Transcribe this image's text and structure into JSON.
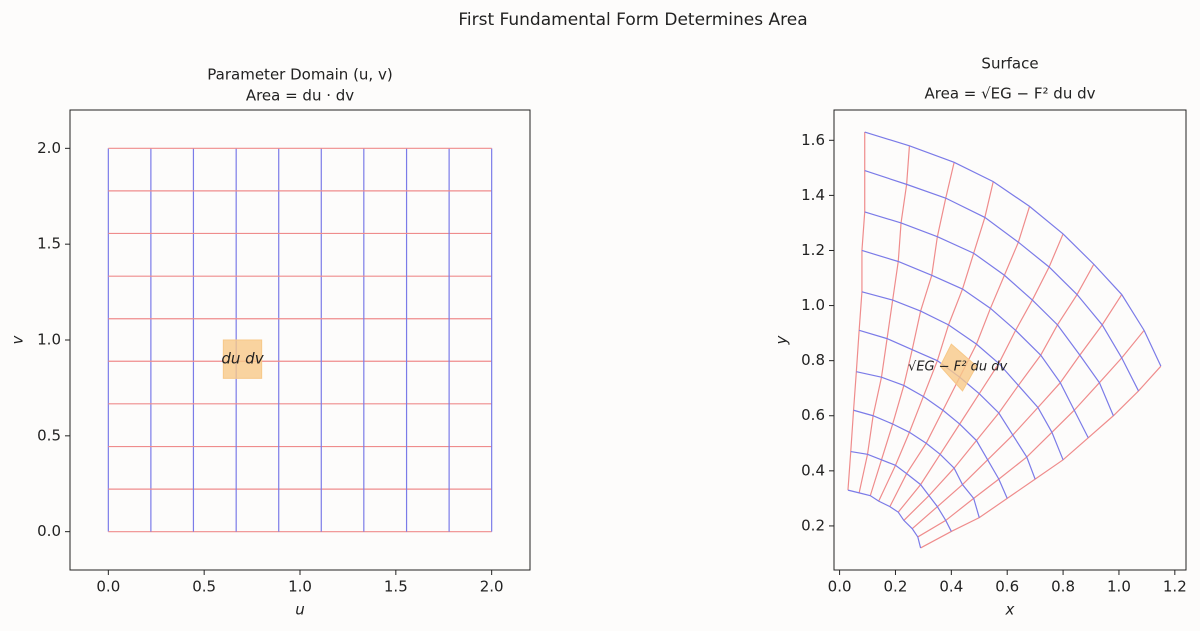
{
  "figure_title": "First Fundamental Form Determines Area",
  "chart_data": [
    {
      "type": "param-domain",
      "title": [
        "Parameter Domain (u, v)",
        "Area = du · dv"
      ],
      "xlabel": "u",
      "ylabel": "v",
      "xlim": [
        -0.2,
        2.2
      ],
      "ylim": [
        -0.2,
        2.2
      ],
      "xticks": [
        {
          "value": 0,
          "label": "0.0"
        },
        0.5,
        {
          "value": 1,
          "label": "1.0"
        },
        1.5,
        {
          "value": 2,
          "label": "2.0"
        }
      ],
      "yticks": [
        {
          "value": 0,
          "label": "0.0"
        },
        0.5,
        {
          "value": 1,
          "label": "1.0"
        },
        1.5,
        {
          "value": 2,
          "label": "2.0"
        }
      ],
      "grid_values": [
        0,
        0.222,
        0.444,
        0.667,
        0.889,
        1.111,
        1.333,
        1.556,
        1.778,
        2
      ],
      "u_color": "#7b7be8",
      "v_color": "#ef8c8c",
      "patch": {
        "u": [
          0.6,
          0.8
        ],
        "v": [
          0.8,
          1.0
        ],
        "color": "#f7c888",
        "label": "du dv"
      }
    },
    {
      "type": "surface-mesh",
      "title": [
        "Surface",
        "Area = √EG − F² du dv"
      ],
      "xlabel": "x",
      "ylabel": "y",
      "xlim": [
        -0.02,
        1.24
      ],
      "ylim": [
        0.04,
        1.71
      ],
      "xticks": [
        {
          "value": 0,
          "label": "0.0"
        },
        0.2,
        0.4,
        0.6,
        0.8,
        {
          "value": 1,
          "label": "1.0"
        },
        1.2
      ],
      "yticks": [
        0.2,
        0.4,
        0.6,
        0.8,
        {
          "value": 1,
          "label": "1.0"
        },
        1.2,
        1.4,
        1.6
      ],
      "u_color": "#7b7be8",
      "v_color": "#ef8c8c",
      "mesh": [
        [
          [
            0.03,
            0.33
          ],
          [
            0.04,
            0.47
          ],
          [
            0.05,
            0.62
          ],
          [
            0.06,
            0.76
          ],
          [
            0.07,
            0.91
          ],
          [
            0.08,
            1.05
          ],
          [
            0.08,
            1.2
          ],
          [
            0.09,
            1.34
          ],
          [
            0.09,
            1.49
          ],
          [
            0.09,
            1.63
          ]
        ],
        [
          [
            0.07,
            0.32
          ],
          [
            0.1,
            0.46
          ],
          [
            0.12,
            0.6
          ],
          [
            0.15,
            0.74
          ],
          [
            0.17,
            0.88
          ],
          [
            0.19,
            1.02
          ],
          [
            0.21,
            1.16
          ],
          [
            0.22,
            1.3
          ],
          [
            0.24,
            1.44
          ],
          [
            0.25,
            1.58
          ]
        ],
        [
          [
            0.11,
            0.31
          ],
          [
            0.15,
            0.44
          ],
          [
            0.19,
            0.57
          ],
          [
            0.23,
            0.71
          ],
          [
            0.26,
            0.84
          ],
          [
            0.29,
            0.98
          ],
          [
            0.33,
            1.11
          ],
          [
            0.35,
            1.25
          ],
          [
            0.38,
            1.39
          ],
          [
            0.41,
            1.52
          ]
        ],
        [
          [
            0.14,
            0.29
          ],
          [
            0.2,
            0.42
          ],
          [
            0.25,
            0.54
          ],
          [
            0.3,
            0.67
          ],
          [
            0.35,
            0.8
          ],
          [
            0.39,
            0.93
          ],
          [
            0.44,
            1.06
          ],
          [
            0.48,
            1.19
          ],
          [
            0.52,
            1.32
          ],
          [
            0.55,
            1.45
          ]
        ],
        [
          [
            0.18,
            0.27
          ],
          [
            0.24,
            0.39
          ],
          [
            0.31,
            0.5
          ],
          [
            0.37,
            0.62
          ],
          [
            0.43,
            0.74
          ],
          [
            0.49,
            0.86
          ],
          [
            0.54,
            0.99
          ],
          [
            0.59,
            1.11
          ],
          [
            0.64,
            1.23
          ],
          [
            0.68,
            1.36
          ]
        ],
        [
          [
            0.21,
            0.25
          ],
          [
            0.29,
            0.35
          ],
          [
            0.36,
            0.46
          ],
          [
            0.43,
            0.57
          ],
          [
            0.5,
            0.68
          ],
          [
            0.57,
            0.79
          ],
          [
            0.63,
            0.91
          ],
          [
            0.69,
            1.02
          ],
          [
            0.75,
            1.14
          ],
          [
            0.8,
            1.26
          ]
        ],
        [
          [
            0.23,
            0.22
          ],
          [
            0.32,
            0.31
          ],
          [
            0.41,
            0.41
          ],
          [
            0.49,
            0.51
          ],
          [
            0.57,
            0.61
          ],
          [
            0.64,
            0.71
          ],
          [
            0.72,
            0.82
          ],
          [
            0.78,
            0.93
          ],
          [
            0.85,
            1.04
          ],
          [
            0.91,
            1.15
          ]
        ],
        [
          [
            0.26,
            0.19
          ],
          [
            0.35,
            0.27
          ],
          [
            0.44,
            0.35
          ],
          [
            0.53,
            0.44
          ],
          [
            0.62,
            0.53
          ],
          [
            0.71,
            0.63
          ],
          [
            0.79,
            0.72
          ],
          [
            0.86,
            0.82
          ],
          [
            0.94,
            0.93
          ],
          [
            1.01,
            1.04
          ]
        ],
        [
          [
            0.28,
            0.16
          ],
          [
            0.38,
            0.22
          ],
          [
            0.48,
            0.3
          ],
          [
            0.57,
            0.37
          ],
          [
            0.67,
            0.45
          ],
          [
            0.76,
            0.54
          ],
          [
            0.84,
            0.62
          ],
          [
            0.93,
            0.72
          ],
          [
            1.01,
            0.81
          ],
          [
            1.09,
            0.91
          ]
        ],
        [
          [
            0.29,
            0.12
          ],
          [
            0.4,
            0.18
          ],
          [
            0.5,
            0.23
          ],
          [
            0.6,
            0.3
          ],
          [
            0.7,
            0.37
          ],
          [
            0.8,
            0.44
          ],
          [
            0.89,
            0.52
          ],
          [
            0.98,
            0.6
          ],
          [
            1.07,
            0.69
          ],
          [
            1.15,
            0.78
          ]
        ]
      ],
      "patch": {
        "corners": [
          [
            0.36,
            0.78
          ],
          [
            0.4,
            0.86
          ],
          [
            0.49,
            0.78
          ],
          [
            0.44,
            0.69
          ]
        ],
        "color": "#f7c888",
        "label": "√EG − F² du dv"
      }
    }
  ]
}
